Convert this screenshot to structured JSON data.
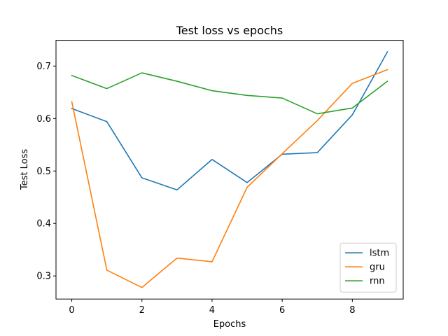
{
  "chart_data": {
    "type": "line",
    "title": "Test loss vs epochs",
    "xlabel": "Epochs",
    "ylabel": "Test Loss",
    "x": [
      0,
      1,
      2,
      3,
      4,
      5,
      6,
      7,
      8,
      9
    ],
    "xlim": [
      -0.45,
      9.45
    ],
    "ylim": [
      0.256,
      0.749
    ],
    "xticks": [
      0,
      2,
      4,
      6,
      8
    ],
    "yticks": [
      0.3,
      0.4,
      0.5,
      0.6,
      0.7
    ],
    "ytick_labels": [
      "0.3",
      "0.4",
      "0.5",
      "0.6",
      "0.7"
    ],
    "grid": false,
    "legend_position": "lower-right",
    "series": [
      {
        "name": "lstm",
        "color": "#1f77b4",
        "values": [
          0.619,
          0.594,
          0.487,
          0.464,
          0.522,
          0.478,
          0.532,
          0.535,
          0.607,
          0.727
        ]
      },
      {
        "name": "gru",
        "color": "#ff7f0e",
        "values": [
          0.632,
          0.311,
          0.278,
          0.334,
          0.327,
          0.469,
          0.533,
          0.596,
          0.667,
          0.693
        ]
      },
      {
        "name": "rnn",
        "color": "#2ca02c",
        "values": [
          0.682,
          0.657,
          0.687,
          0.671,
          0.653,
          0.644,
          0.639,
          0.609,
          0.62,
          0.671
        ]
      }
    ]
  }
}
